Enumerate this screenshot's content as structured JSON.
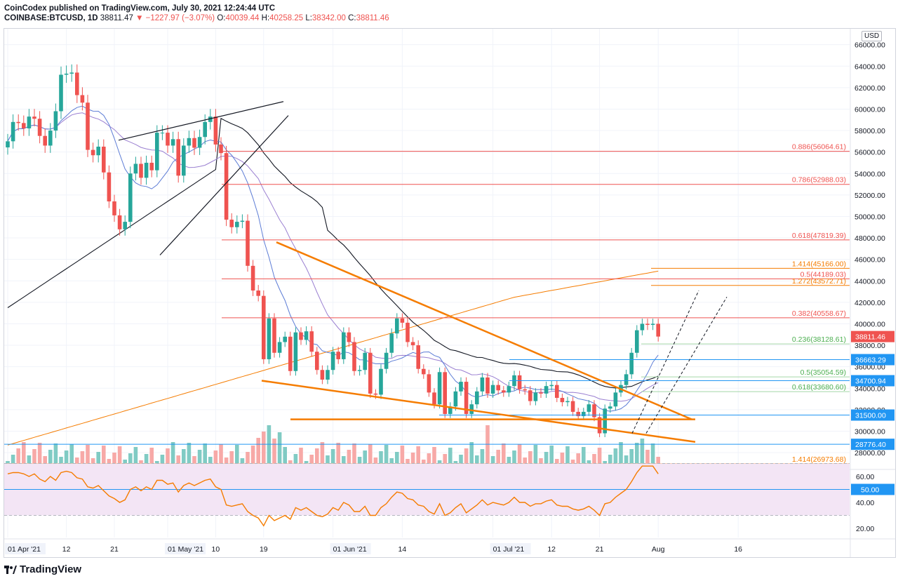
{
  "header": {
    "line1": "CoinCodex published on TradingView.com, July 30, 2021 12:24:44 UTC",
    "symbol": "COINBASE:BTCUSD, 1D",
    "last": "38811.47",
    "change": "▼ −1227.97 (−3.07%)",
    "o_label": "O:",
    "o": "40039.44",
    "h_label": "H:",
    "h": "40258.25",
    "l_label": "L:",
    "l": "38342.00",
    "c_label": "C:",
    "c": "38811.46"
  },
  "footer": {
    "brand": "TradingView"
  },
  "currency": "USD",
  "colors": {
    "up": "#26a69a",
    "down": "#ef5350",
    "fib": "#ef5350",
    "ma20": "#5b7bd5",
    "ma50": "#9a7fd1",
    "ma100": "#131722",
    "ma200": "#f57c00",
    "trend": "#f57c00",
    "rsi": "#f57c00",
    "rsiBand": "#f3e5f5",
    "hline": "#2196f3",
    "greenFib": "#4caf50"
  },
  "chart_data": {
    "type": "candlestick",
    "title": "COINBASE:BTCUSD, 1D",
    "ylim": [
      26500,
      66500
    ],
    "y_ticks": [
      28000,
      30000,
      32000,
      34000,
      36000,
      38000,
      40000,
      42000,
      44000,
      46000,
      48000,
      50000,
      52000,
      54000,
      56000,
      58000,
      60000,
      62000,
      64000,
      66000
    ],
    "x_ticks": [
      {
        "day": 0,
        "label": "01 Apr '21",
        "boxed": true
      },
      {
        "day": 11,
        "label": "12"
      },
      {
        "day": 20,
        "label": "21"
      },
      {
        "day": 30,
        "label": "01 May '21",
        "boxed": true
      },
      {
        "day": 39,
        "label": "10"
      },
      {
        "day": 48,
        "label": "19"
      },
      {
        "day": 61,
        "label": "01 Jun '21",
        "boxed": true
      },
      {
        "day": 74,
        "label": "14"
      },
      {
        "day": 91,
        "label": "01 Jul '21",
        "boxed": true
      },
      {
        "day": 102,
        "label": "12"
      },
      {
        "day": 111,
        "label": "21"
      },
      {
        "day": 122,
        "label": "Aug"
      },
      {
        "day": 137,
        "label": "16"
      }
    ],
    "closes": [
      57000,
      58800,
      58700,
      58200,
      59300,
      59100,
      57500,
      56600,
      58000,
      59800,
      63200,
      63300,
      63400,
      61300,
      60600,
      56200,
      55700,
      56500,
      54100,
      51400,
      50100,
      48800,
      49500,
      54000,
      54900,
      53600,
      55000,
      54300,
      57800,
      57800,
      56600,
      57200,
      53800,
      56600,
      57300,
      56400,
      57400,
      58800,
      59300,
      56700,
      55900,
      49700,
      49000,
      49500,
      49600,
      45400,
      43100,
      42600,
      36700,
      40500,
      37300,
      38300,
      38800,
      35600,
      39200,
      38500,
      39300,
      37400,
      35700,
      34800,
      35700,
      37400,
      36700,
      39200,
      38300,
      35600,
      35700,
      37300,
      33500,
      33400,
      35800,
      37300,
      39100,
      40500,
      40100,
      38300,
      38000,
      35800,
      35300,
      33600,
      32500,
      35500,
      31600,
      32300,
      33700,
      34600,
      31600,
      32500,
      33700,
      35000,
      33500,
      34300,
      33800,
      33600,
      34200,
      35200,
      33900,
      33800,
      32800,
      33600,
      33500,
      34200,
      34300,
      33100,
      32700,
      32800,
      31800,
      31400,
      31800,
      32500,
      31300,
      29800,
      32100,
      32300,
      33600,
      34300,
      35300,
      37300,
      39400,
      40000,
      39900,
      40000,
      38811
    ]
  },
  "fib_levels": [
    {
      "price": 56064.61,
      "label": "0.886(56064.61)"
    },
    {
      "price": 52988.03,
      "label": "0.786(52988.03)"
    },
    {
      "price": 47819.39,
      "label": "0.618(47819.39)"
    },
    {
      "price": 44189.03,
      "label": "0.5(44189.03)"
    },
    {
      "price": 40558.67,
      "label": "0.382(40558.67)"
    }
  ],
  "ext_levels": [
    {
      "price": 45166.0,
      "label": "1.414(45166.00)"
    },
    {
      "price": 43572.71,
      "label": "1.272(43572.71)"
    },
    {
      "price": 26973.68,
      "label": "1.414(26973.68)"
    }
  ],
  "green_fibs": [
    {
      "price": 38128.61,
      "label": "0.236(38128.61)"
    },
    {
      "price": 35054.59,
      "label": "0.5(35054.59)"
    },
    {
      "price": 33680.6,
      "label": "0.618(33680.60)"
    }
  ],
  "price_tags": [
    {
      "price": 38811.46,
      "label": "38811.46",
      "color": "#ef5350"
    },
    {
      "price": 36663.29,
      "label": "36663.29",
      "color": "#2196f3"
    },
    {
      "price": 34700.94,
      "label": "34700.94",
      "color": "#2196f3"
    },
    {
      "price": 31500.0,
      "label": "31500.00",
      "color": "#2196f3"
    },
    {
      "price": 28776.4,
      "label": "28776.40",
      "color": "#2196f3"
    }
  ],
  "rsi": {
    "ticks": [
      20,
      40,
      60
    ],
    "tick_labels": [
      "20.00",
      "40.00",
      "60.00"
    ],
    "band": [
      30,
      70
    ],
    "level_label": "50.00",
    "values": [
      62,
      63,
      63,
      62,
      60,
      62,
      58,
      56,
      60,
      57,
      63,
      64,
      63,
      59,
      58,
      52,
      51,
      53,
      49,
      45,
      43,
      40,
      42,
      50,
      52,
      49,
      52,
      50,
      57,
      57,
      54,
      55,
      48,
      53,
      55,
      53,
      55,
      57,
      58,
      52,
      50,
      38,
      37,
      38,
      39,
      33,
      30,
      28,
      22,
      30,
      26,
      28,
      30,
      27,
      36,
      34,
      36,
      33,
      30,
      29,
      31,
      36,
      34,
      40,
      38,
      33,
      33,
      37,
      30,
      30,
      36,
      39,
      44,
      48,
      47,
      43,
      42,
      38,
      37,
      33,
      31,
      39,
      30,
      32,
      36,
      39,
      32,
      35,
      38,
      42,
      38,
      40,
      39,
      38,
      40,
      44,
      40,
      40,
      37,
      39,
      39,
      41,
      42,
      38,
      37,
      37,
      35,
      34,
      35,
      37,
      34,
      30,
      39,
      40,
      44,
      47,
      50,
      56,
      63,
      68,
      68,
      68,
      62
    ]
  }
}
